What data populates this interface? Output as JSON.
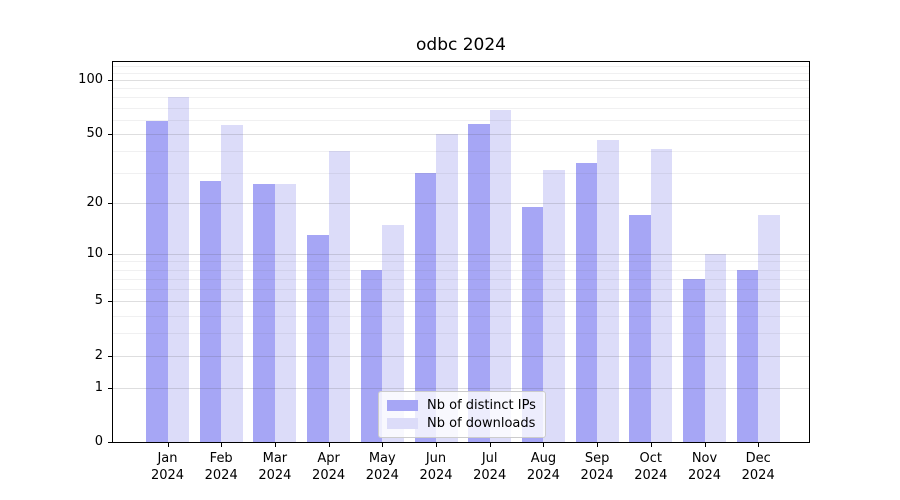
{
  "chart_data": {
    "type": "bar",
    "title": "odbc 2024",
    "xlabel": "",
    "ylabel": "",
    "categories": [
      "Jan",
      "Feb",
      "Mar",
      "Apr",
      "May",
      "Jun",
      "Jul",
      "Aug",
      "Sep",
      "Oct",
      "Nov",
      "Dec"
    ],
    "year": "2024",
    "series": [
      {
        "name": "Nb of distinct IPs",
        "color": "#a6a6f5",
        "values": [
          59,
          27,
          26,
          13,
          8,
          30,
          57,
          19,
          34,
          17,
          7,
          8
        ]
      },
      {
        "name": "Nb of downloads",
        "color": "#dcdcf9",
        "values": [
          80,
          56,
          26,
          40,
          15,
          50,
          68,
          31,
          46,
          41,
          10,
          17
        ]
      }
    ],
    "yscale": "log1p",
    "ylim": [
      0,
      126
    ],
    "yticks": [
      0,
      1,
      2,
      5,
      10,
      20,
      50,
      100
    ],
    "yticks_minor": [
      3,
      4,
      6,
      7,
      8,
      9,
      30,
      40,
      60,
      70,
      80,
      90,
      110,
      120
    ],
    "grid": true,
    "legend_position": "lower center"
  },
  "colors": {
    "distinct_ips": "#a6a6f5",
    "downloads": "#dcdcf9",
    "spine": "#000000",
    "grid_major": "rgba(90,90,95,0.20)",
    "grid_minor": "rgba(90,90,95,0.09)",
    "legend_border": "#cccccc"
  }
}
